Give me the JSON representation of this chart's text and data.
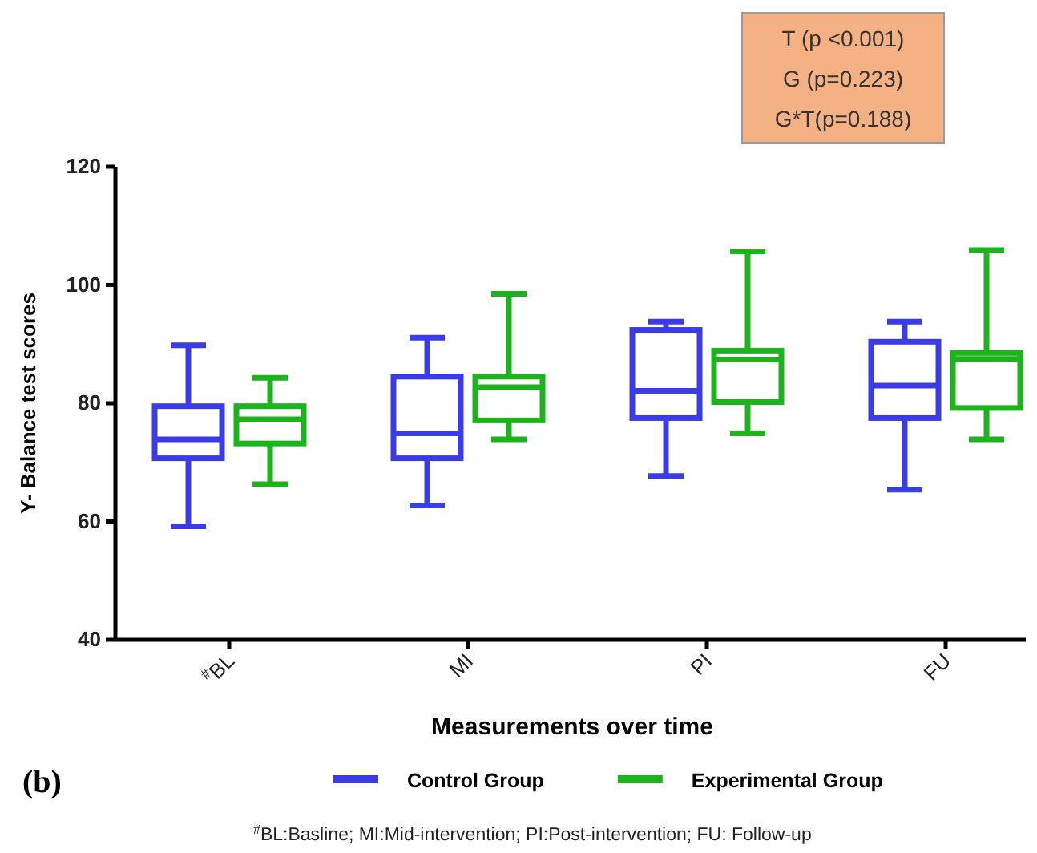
{
  "chart_data": {
    "type": "box",
    "xlabel": "Measurements over time",
    "ylabel": "Y- Balance test scores",
    "categories": [
      "$^{#}$BL",
      "MI",
      "PI",
      "FU"
    ],
    "ylim": [
      40,
      120
    ],
    "yticks": [
      40,
      60,
      80,
      100,
      120
    ],
    "grid": false,
    "legend": "bottom",
    "series": [
      {
        "name": "Control Group",
        "color": "#3b3be8",
        "boxes": [
          {
            "low": 59.2,
            "q1": 70.7,
            "median": 73.9,
            "q3": 79.5,
            "high": 89.8
          },
          {
            "low": 62.7,
            "q1": 70.7,
            "median": 74.9,
            "q3": 84.5,
            "high": 91.1
          },
          {
            "low": 67.7,
            "q1": 77.5,
            "median": 82.1,
            "q3": 92.4,
            "high": 93.8
          },
          {
            "low": 65.4,
            "q1": 77.5,
            "median": 83.0,
            "q3": 90.4,
            "high": 93.8
          }
        ]
      },
      {
        "name": "Experimental Group",
        "color": "#1db31d",
        "boxes": [
          {
            "low": 66.3,
            "q1": 73.2,
            "median": 77.3,
            "q3": 79.5,
            "high": 84.3
          },
          {
            "low": 73.9,
            "q1": 77.1,
            "median": 82.7,
            "q3": 84.5,
            "high": 98.5
          },
          {
            "low": 74.9,
            "q1": 80.2,
            "median": 87.4,
            "q3": 88.9,
            "high": 105.7
          },
          {
            "low": 73.9,
            "q1": 79.2,
            "median": 87.5,
            "q3": 88.5,
            "high": 105.9
          }
        ]
      }
    ],
    "annotations": [
      "T (p <0.001)",
      "G (p=0.223)",
      "G*T(p=0.188)",
      "(b)",
      "$^{#}$BL:Basline; MI:Mid-intervention; PI:Post-intervention; FU: Follow-up"
    ]
  }
}
